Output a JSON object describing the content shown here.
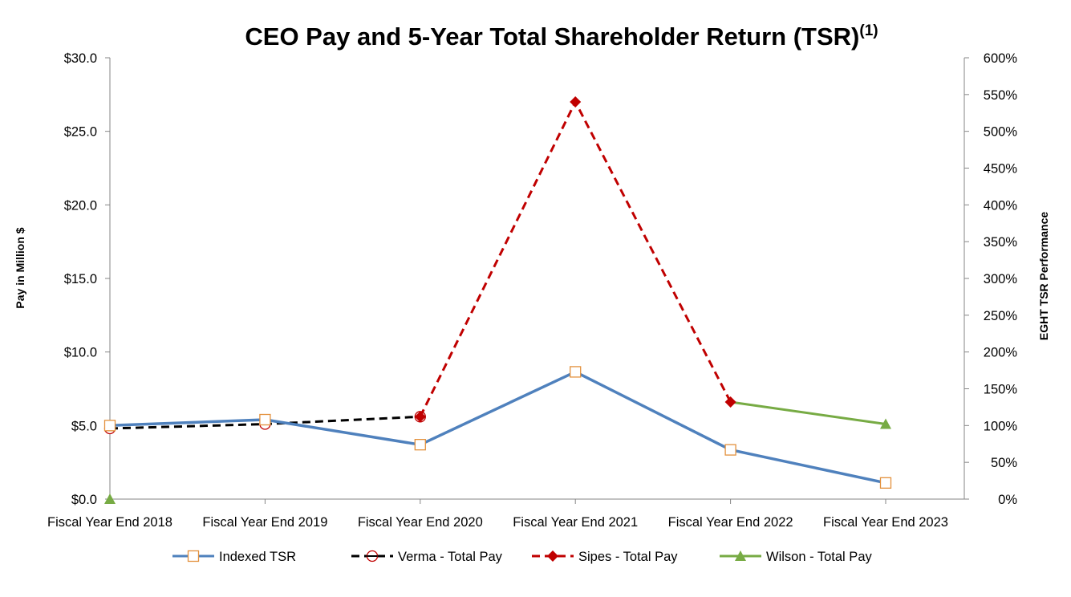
{
  "chart_data": {
    "type": "line",
    "title": "CEO Pay and 5-Year Total Shareholder Return (TSR)",
    "title_superscript": "(1)",
    "categories": [
      "Fiscal Year End 2018",
      "Fiscal Year End 2019",
      "Fiscal Year End 2020",
      "Fiscal Year End 2021",
      "Fiscal Year End 2022",
      "Fiscal Year End 2023"
    ],
    "ylabel": "Pay in Million $",
    "y2label": "EGHT TSR Performance",
    "ylim": [
      0,
      30
    ],
    "y2lim": [
      0,
      600
    ],
    "yticks": [
      "$0.0",
      "$5.0",
      "$10.0",
      "$15.0",
      "$20.0",
      "$25.0",
      "$30.0"
    ],
    "y2ticks": [
      "0%",
      "50%",
      "100%",
      "150%",
      "200%",
      "250%",
      "300%",
      "350%",
      "400%",
      "450%",
      "500%",
      "550%",
      "600%"
    ],
    "legend_position": "bottom",
    "series": [
      {
        "name": "Indexed TSR",
        "axis": "right",
        "color": "#4f81bd",
        "dash": "solid",
        "marker": "open-square",
        "marker_color": "#e3913c",
        "values": [
          100,
          108,
          74,
          173,
          67,
          22
        ]
      },
      {
        "name": "Verma - Total Pay",
        "axis": "left",
        "color": "#000000",
        "dash": "dashed",
        "marker": "open-circle",
        "marker_color": "#c00000",
        "values": [
          4.8,
          5.1,
          5.6,
          null,
          null,
          null
        ]
      },
      {
        "name": "Sipes - Total Pay",
        "axis": "left",
        "color": "#c00000",
        "dash": "dashed",
        "marker": "diamond",
        "marker_color": "#c00000",
        "values": [
          null,
          null,
          5.6,
          27.0,
          6.6,
          null
        ]
      },
      {
        "name": "Wilson - Total Pay",
        "axis": "left",
        "color": "#77ab44",
        "dash": "solid",
        "marker": "triangle",
        "marker_color": "#77ab44",
        "values": [
          0.0,
          null,
          null,
          null,
          6.6,
          5.1
        ]
      }
    ]
  }
}
